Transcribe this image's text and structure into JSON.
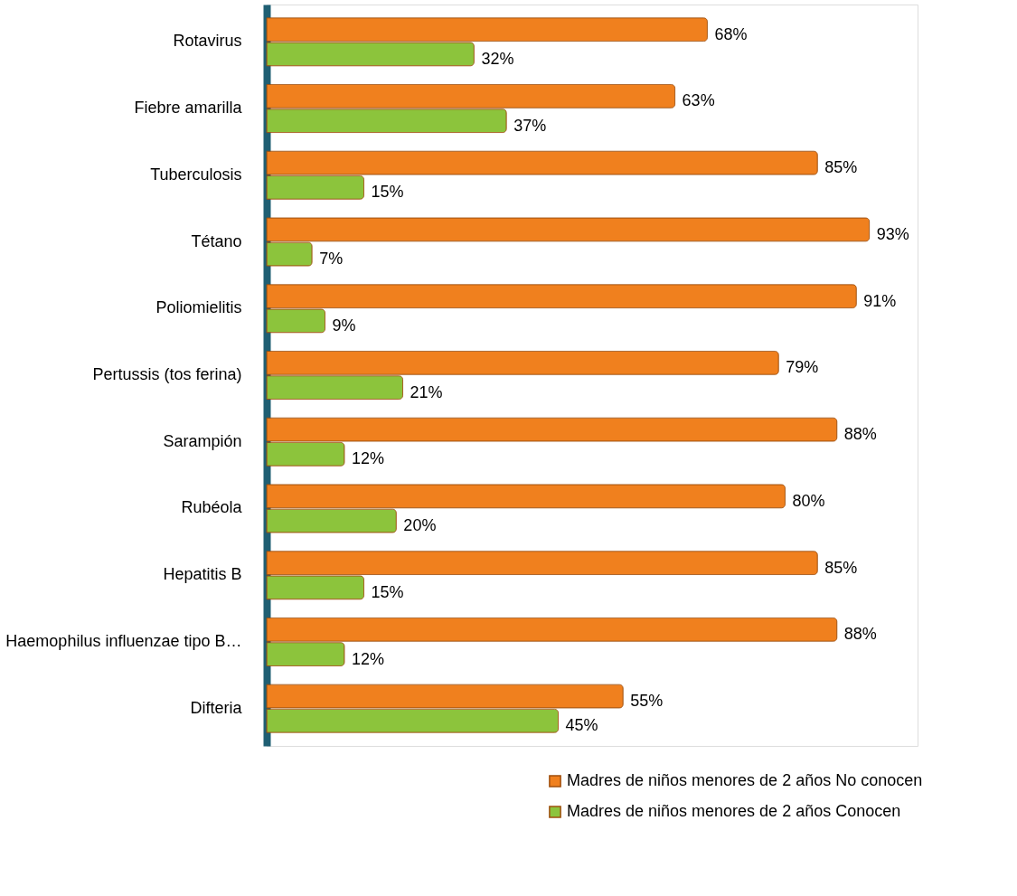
{
  "chart_data": {
    "type": "bar",
    "orientation": "horizontal",
    "legend": "bottom right",
    "categories": [
      "Rotavirus",
      "Fiebre amarilla",
      "Tuberculosis",
      "Tétano",
      "Poliomielitis",
      "Pertussis (tos ferina)",
      "Sarampión",
      "Rubéola",
      "Hepatitis B",
      "Haemophilus influenzae tipo B…",
      "Difteria"
    ],
    "series": [
      {
        "name": "Madres de niños menores de 2 años No conocen",
        "color": "#f0801e",
        "values": [
          68,
          63,
          85,
          93,
          91,
          79,
          88,
          80,
          85,
          88,
          55
        ],
        "value_labels": [
          "68%",
          "63%",
          "85%",
          "93%",
          "91%",
          "79%",
          "88%",
          "80%",
          "85%",
          "88%",
          "55%"
        ]
      },
      {
        "name": "Madres de niños menores de 2 años Conocen",
        "color": "#8cc43c",
        "values": [
          32,
          37,
          15,
          7,
          9,
          21,
          12,
          20,
          15,
          12,
          45
        ],
        "value_labels": [
          "32%",
          "37%",
          "15%",
          "7%",
          "9%",
          "21%",
          "12%",
          "20%",
          "15%",
          "12%",
          "45%"
        ]
      }
    ]
  }
}
